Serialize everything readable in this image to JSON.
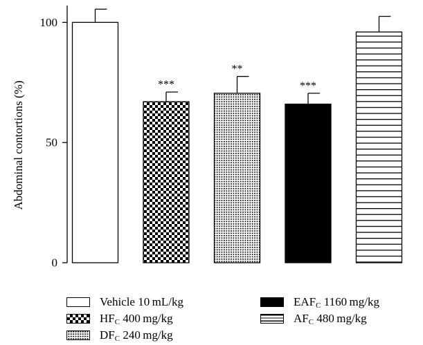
{
  "chart_data": {
    "type": "bar",
    "ylabel": "Abdominal contortions (%)",
    "ylim": [
      0,
      107
    ],
    "yticks": [
      0,
      50,
      100
    ],
    "grid": false,
    "legend_position": "bottom",
    "categories": [
      "Vehicle 10 mL/kg",
      "HFC 400 mg/kg",
      "DFC 240 mg/kg",
      "EAFC 1160 mg/kg",
      "AFC 480 mg/kg"
    ],
    "series": [
      {
        "values": [
          100,
          67,
          70.5,
          66,
          96
        ],
        "errors": [
          5.5,
          4,
          7,
          4.5,
          6.5
        ],
        "annotations": [
          "",
          "***",
          "**",
          "***",
          ""
        ],
        "patterns": [
          "white",
          "checker",
          "dots",
          "black",
          "hlines"
        ]
      }
    ],
    "legend": [
      {
        "name": "Vehicle 10 mL/kg",
        "base": "Vehicle 10 mL/kg",
        "sub": "",
        "rest": "",
        "pattern": "white"
      },
      {
        "name": "HFC 400 mg/kg",
        "base": "HF",
        "sub": "C",
        "rest": " 400 mg/kg",
        "pattern": "checker"
      },
      {
        "name": "DFC 240 mg/kg",
        "base": "DF",
        "sub": "C",
        "rest": " 240 mg/kg",
        "pattern": "dots"
      },
      {
        "name": "EAFC 1160 mg/kg",
        "base": "EAF",
        "sub": "C",
        "rest": " 1160 mg/kg",
        "pattern": "black"
      },
      {
        "name": "AFC 480 mg/kg",
        "base": "AF",
        "sub": "C",
        "rest": " 480 mg/kg",
        "pattern": "hlines"
      }
    ]
  }
}
